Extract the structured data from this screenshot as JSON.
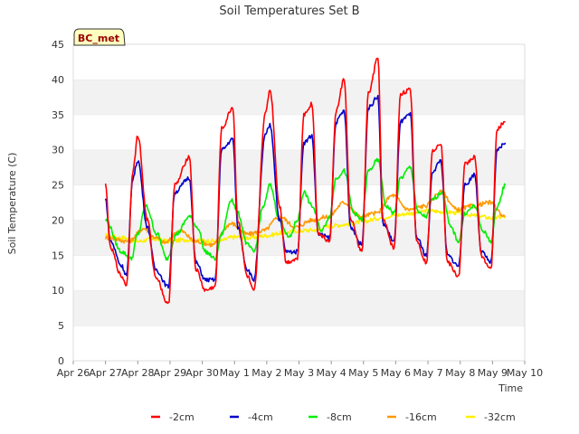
{
  "chart_data": {
    "type": "line",
    "title": "Soil Temperatures Set B",
    "xlabel": "Time",
    "ylabel": "Soil Temperature (C)",
    "station_label": "BC_met",
    "ylim": [
      0,
      45
    ],
    "yticks": [
      0,
      5,
      10,
      15,
      20,
      25,
      30,
      35,
      40,
      45
    ],
    "xlim": [
      0,
      14
    ],
    "xticks": [
      0,
      1,
      2,
      3,
      4,
      5,
      6,
      7,
      8,
      9,
      10,
      11,
      12,
      13,
      14
    ],
    "xtick_labels": [
      "Apr 26",
      "Apr 27",
      "Apr 28",
      "Apr 29",
      "Apr 30",
      "May 1",
      "May 2",
      "May 3",
      "May 4",
      "May 5",
      "May 6",
      "May 7",
      "May 8",
      "May 9",
      "May 10"
    ],
    "grid": "horizontal alternating bands",
    "legend_position": "bottom",
    "series": [
      {
        "name": "-2cm",
        "color": "#ff0000",
        "x": [
          1.0,
          1.15,
          1.5,
          1.65,
          1.85,
          2.0,
          2.3,
          2.55,
          2.95,
          3.15,
          3.6,
          3.8,
          4.1,
          4.4,
          4.6,
          4.95,
          5.1,
          5.4,
          5.6,
          5.95,
          6.1,
          6.4,
          6.6,
          6.95,
          7.15,
          7.4,
          7.6,
          7.95,
          8.15,
          8.4,
          8.6,
          8.95,
          9.15,
          9.45,
          9.6,
          9.95,
          10.15,
          10.45,
          10.65,
          10.95,
          11.15,
          11.4,
          11.6,
          11.95,
          12.15,
          12.45,
          12.65,
          12.95,
          13.15,
          13.4
        ],
        "y": [
          25,
          16,
          12,
          10.8,
          27,
          32,
          20,
          12,
          8,
          25,
          29,
          13,
          10,
          10.5,
          33,
          36,
          20,
          12,
          9.8,
          35,
          38.5,
          22,
          14,
          14.5,
          35,
          36.5,
          18,
          17,
          35.5,
          40,
          20,
          15.5,
          38,
          43,
          20,
          16,
          38,
          38.5,
          17,
          14,
          30,
          31,
          14,
          12,
          28,
          29,
          15,
          13,
          33,
          34
        ]
      },
      {
        "name": "-4cm",
        "color": "#0000cc",
        "x": [
          1.0,
          1.15,
          1.5,
          1.65,
          1.85,
          2.0,
          2.3,
          2.55,
          2.95,
          3.15,
          3.6,
          3.8,
          4.1,
          4.4,
          4.6,
          4.95,
          5.1,
          5.4,
          5.6,
          5.95,
          6.1,
          6.4,
          6.6,
          6.95,
          7.15,
          7.4,
          7.6,
          7.95,
          8.15,
          8.4,
          8.6,
          8.95,
          9.15,
          9.45,
          9.6,
          9.95,
          10.15,
          10.45,
          10.65,
          10.95,
          11.15,
          11.4,
          11.6,
          11.95,
          12.15,
          12.45,
          12.65,
          12.95,
          13.15,
          13.4
        ],
        "y": [
          23,
          17,
          13.5,
          12.2,
          26,
          28.5,
          19,
          13,
          10.5,
          24,
          26,
          14,
          11.5,
          11.5,
          30,
          31.5,
          19,
          13,
          11.5,
          32,
          33.5,
          20,
          15.5,
          15.5,
          31,
          32,
          18,
          17.5,
          34,
          35.5,
          19,
          16.5,
          36,
          37.5,
          19.5,
          17,
          34,
          35,
          17.5,
          15,
          27,
          28.5,
          15,
          13.5,
          25,
          26.5,
          15.5,
          14,
          30,
          31
        ]
      },
      {
        "name": "-8cm",
        "color": "#00ee00",
        "x": [
          1.0,
          1.5,
          1.8,
          2.0,
          2.25,
          2.6,
          2.9,
          3.2,
          3.6,
          3.85,
          4.1,
          4.4,
          4.6,
          4.9,
          5.1,
          5.4,
          5.6,
          5.9,
          6.1,
          6.4,
          6.7,
          6.95,
          7.15,
          7.4,
          7.7,
          7.95,
          8.15,
          8.4,
          8.7,
          8.95,
          9.15,
          9.45,
          9.7,
          9.95,
          10.15,
          10.45,
          10.7,
          10.95,
          11.15,
          11.45,
          11.7,
          11.95,
          12.15,
          12.45,
          12.7,
          12.95,
          13.15,
          13.4
        ],
        "y": [
          20,
          15.5,
          14.5,
          18,
          22,
          18,
          14.5,
          18,
          20.5,
          19,
          15.5,
          14.5,
          18,
          23,
          21,
          16.5,
          15.5,
          22,
          25,
          20,
          17.5,
          20,
          24,
          22,
          18.5,
          20.5,
          26,
          27,
          21,
          20,
          27,
          28.5,
          22,
          21,
          26,
          27.5,
          21,
          20.5,
          23,
          24,
          19,
          17,
          21,
          22,
          18.5,
          17,
          22,
          25
        ]
      },
      {
        "name": "-16cm",
        "color": "#ff9900",
        "x": [
          1.0,
          1.7,
          2.2,
          2.5,
          2.85,
          3.3,
          3.8,
          4.3,
          4.9,
          5.4,
          5.9,
          6.4,
          6.9,
          7.4,
          7.9,
          8.4,
          8.9,
          9.4,
          9.9,
          10.4,
          10.9,
          11.4,
          11.9,
          12.4,
          12.9,
          13.4
        ],
        "y": [
          17.5,
          17,
          18.8,
          17.6,
          16.8,
          18.5,
          17,
          16.5,
          19.5,
          18,
          18.5,
          20.5,
          19,
          20,
          20.5,
          22.5,
          20.5,
          21,
          23.5,
          21.5,
          22,
          24,
          21.5,
          22,
          22.5,
          20.5
        ]
      },
      {
        "name": "-32cm",
        "color": "#ffee00",
        "x": [
          1.0,
          1.5,
          2.0,
          2.5,
          3.0,
          3.5,
          4.0,
          4.5,
          5.0,
          5.5,
          6.0,
          6.5,
          7.0,
          7.5,
          8.0,
          8.5,
          9.0,
          9.5,
          10.0,
          10.5,
          11.0,
          11.5,
          12.0,
          12.5,
          13.0,
          13.4
        ],
        "y": [
          17.8,
          17.5,
          17.0,
          17.3,
          17.0,
          17.2,
          17.1,
          17.0,
          17.6,
          17.5,
          17.8,
          18.2,
          18.5,
          18.6,
          19.2,
          19.4,
          19.8,
          20.3,
          20.7,
          21.0,
          21.3,
          21.2,
          21.0,
          20.6,
          20.3,
          20.5
        ]
      }
    ]
  }
}
